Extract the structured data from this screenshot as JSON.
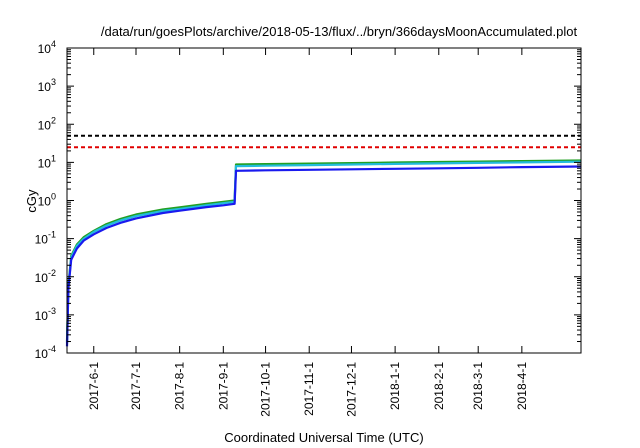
{
  "chart_data": {
    "type": "line",
    "title": "/data/run/goesPlots/archive/2018-05-13/flux/../bryn/366daysMoonAccumulated.plot",
    "xlabel": "Coordinated Universal Time (UTC)",
    "ylabel": "cGy",
    "yscale": "log",
    "ylim": [
      0.0001,
      10000
    ],
    "xlim": [
      "2017-05-13",
      "2018-05-13"
    ],
    "grid": false,
    "y_ticks": [
      {
        "base": "10",
        "exp": "-4"
      },
      {
        "base": "10",
        "exp": "-3"
      },
      {
        "base": "10",
        "exp": "-2"
      },
      {
        "base": "10",
        "exp": "-1"
      },
      {
        "base": "10",
        "exp": "0"
      },
      {
        "base": "10",
        "exp": "1"
      },
      {
        "base": "10",
        "exp": "2"
      },
      {
        "base": "10",
        "exp": "3"
      },
      {
        "base": "10",
        "exp": "4"
      }
    ],
    "x_ticks": [
      "2017-6-1",
      "2017-7-1",
      "2017-8-1",
      "2017-9-1",
      "2017-10-1",
      "2017-11-1",
      "2017-12-1",
      "2018-1-1",
      "2018-2-1",
      "2018-3-1",
      "2018-4-1"
    ],
    "reference_lines": [
      {
        "y": 50,
        "color": "#000000",
        "style": "dashed"
      },
      {
        "y": 25,
        "color": "#e00000",
        "style": "dashed"
      }
    ],
    "series": [
      {
        "color": "#22a022",
        "x": [
          "2017-05-13",
          "2017-05-14",
          "2017-05-16",
          "2017-05-20",
          "2017-05-25",
          "2017-06-01",
          "2017-06-10",
          "2017-06-20",
          "2017-07-01",
          "2017-07-20",
          "2017-08-01",
          "2017-08-20",
          "2017-09-01",
          "2017-09-09",
          "2017-09-10",
          "2017-10-01",
          "2017-11-01",
          "2017-12-01",
          "2018-01-01",
          "2018-02-01",
          "2018-03-01",
          "2018-04-01",
          "2018-05-13"
        ],
        "y": [
          0.0002,
          0.006,
          0.035,
          0.07,
          0.11,
          0.16,
          0.24,
          0.33,
          0.43,
          0.58,
          0.66,
          0.82,
          0.92,
          1.0,
          8.8,
          9.0,
          9.3,
          9.6,
          9.9,
          10.2,
          10.5,
          10.8,
          11.2
        ]
      },
      {
        "color": "#22bbdd",
        "x": [
          "2017-05-13",
          "2017-05-14",
          "2017-05-16",
          "2017-05-20",
          "2017-05-25",
          "2017-06-01",
          "2017-06-10",
          "2017-06-20",
          "2017-07-01",
          "2017-07-20",
          "2017-08-01",
          "2017-08-20",
          "2017-09-01",
          "2017-09-09",
          "2017-09-10",
          "2017-10-01",
          "2017-11-01",
          "2017-12-01",
          "2018-01-01",
          "2018-02-01",
          "2018-03-01",
          "2018-04-01",
          "2018-05-13"
        ],
        "y": [
          0.00018,
          0.0055,
          0.032,
          0.065,
          0.1,
          0.15,
          0.22,
          0.3,
          0.39,
          0.53,
          0.6,
          0.75,
          0.85,
          0.92,
          8.0,
          8.2,
          8.5,
          8.8,
          9.1,
          9.4,
          9.7,
          10.0,
          10.4
        ]
      },
      {
        "color": "#1a1aee",
        "x": [
          "2017-05-13",
          "2017-05-14",
          "2017-05-16",
          "2017-05-20",
          "2017-05-25",
          "2017-06-01",
          "2017-06-10",
          "2017-06-20",
          "2017-07-01",
          "2017-07-20",
          "2017-08-01",
          "2017-08-20",
          "2017-09-01",
          "2017-09-09",
          "2017-09-10",
          "2017-10-01",
          "2017-11-01",
          "2017-12-01",
          "2018-01-01",
          "2018-02-01",
          "2018-03-01",
          "2018-04-01",
          "2018-05-13"
        ],
        "y": [
          0.00015,
          0.005,
          0.028,
          0.055,
          0.09,
          0.13,
          0.19,
          0.26,
          0.34,
          0.47,
          0.54,
          0.67,
          0.75,
          0.82,
          6.0,
          6.2,
          6.4,
          6.6,
          6.8,
          7.0,
          7.2,
          7.5,
          7.8
        ]
      }
    ]
  }
}
